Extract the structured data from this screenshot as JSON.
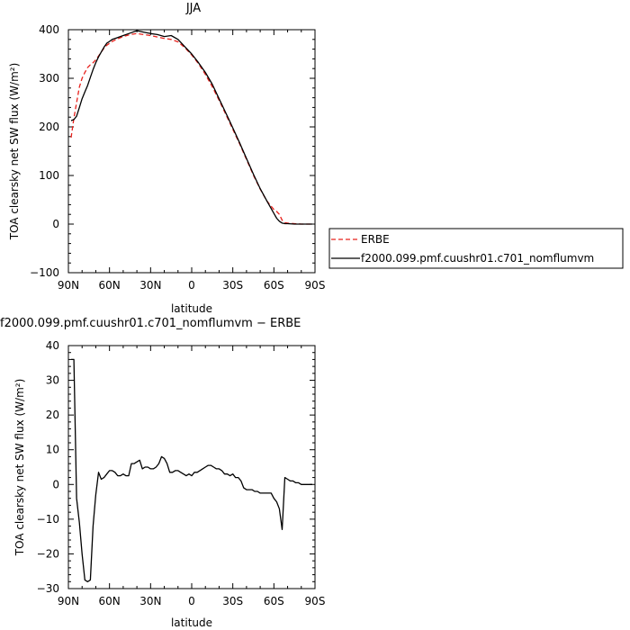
{
  "chart_data": [
    {
      "type": "line",
      "title": "JJA",
      "xlabel": "latitude",
      "ylabel": "TOA clearsky net SW flux (W/m²)",
      "ylim": [
        -100,
        400
      ],
      "xlim": [
        90,
        -90
      ],
      "xticks": [
        "90N",
        "60N",
        "30N",
        "0",
        "30S",
        "60S",
        "90S"
      ],
      "xtick_values": [
        90,
        60,
        30,
        0,
        -30,
        -60,
        -90
      ],
      "yticks": [
        "−100",
        "0",
        "100",
        "200",
        "300",
        "400"
      ],
      "ytick_values": [
        -100,
        0,
        100,
        200,
        300,
        400
      ],
      "legend_position": "right",
      "series": [
        {
          "name": "ERBE",
          "color": "#e8211c",
          "dash": "dashed",
          "x": [
            88,
            86,
            84,
            82,
            80,
            78,
            76,
            74,
            72,
            70,
            68,
            66,
            64,
            62,
            60,
            58,
            55,
            50,
            45,
            40,
            35,
            30,
            25,
            20,
            15,
            10,
            5,
            0,
            -5,
            -10,
            -15,
            -20,
            -25,
            -30,
            -35,
            -40,
            -45,
            -50,
            -55,
            -60,
            -62,
            -64,
            -66,
            -68,
            -70,
            -75,
            -80,
            -88
          ],
          "y": [
            178,
            218,
            250,
            282,
            300,
            312,
            322,
            328,
            332,
            338,
            346,
            354,
            362,
            368,
            372,
            376,
            380,
            386,
            390,
            392,
            390,
            388,
            385,
            382,
            380,
            375,
            363,
            348,
            330,
            308,
            283,
            255,
            225,
            195,
            165,
            133,
            101,
            72,
            47,
            30,
            26,
            20,
            8,
            3,
            2,
            1,
            0,
            0
          ]
        },
        {
          "name": "f2000.099.pmf.cuushr01.c701_nomflumvm",
          "color": "#000000",
          "dash": "solid",
          "x": [
            88,
            86,
            84,
            82,
            80,
            78,
            76,
            74,
            72,
            70,
            68,
            66,
            64,
            62,
            60,
            58,
            55,
            50,
            45,
            40,
            35,
            30,
            25,
            20,
            15,
            10,
            5,
            0,
            -5,
            -10,
            -15,
            -20,
            -25,
            -30,
            -35,
            -40,
            -45,
            -50,
            -55,
            -60,
            -62,
            -64,
            -66,
            -68,
            -70,
            -75,
            -80,
            -88
          ],
          "y": [
            213,
            215,
            222,
            240,
            258,
            272,
            285,
            302,
            318,
            332,
            344,
            354,
            364,
            372,
            376,
            380,
            383,
            388,
            393,
            398,
            395,
            392,
            390,
            386,
            388,
            380,
            365,
            350,
            332,
            312,
            288,
            258,
            228,
            198,
            167,
            135,
            103,
            73,
            47,
            22,
            12,
            6,
            2,
            1,
            1,
            0,
            0,
            0
          ]
        }
      ]
    },
    {
      "type": "line",
      "title": "f2000.099.pmf.cuushr01.c701_nomflumvm − ERBE",
      "xlabel": "latitude",
      "ylabel": "TOA clearsky net SW flux (W/m²)",
      "ylim": [
        -30,
        40
      ],
      "xlim": [
        90,
        -90
      ],
      "xticks": [
        "90N",
        "60N",
        "30N",
        "0",
        "30S",
        "60S",
        "90S"
      ],
      "xtick_values": [
        90,
        60,
        30,
        0,
        -30,
        -60,
        -90
      ],
      "yticks": [
        "−30",
        "−20",
        "−10",
        "0",
        "10",
        "20",
        "30",
        "40"
      ],
      "ytick_values": [
        -30,
        -20,
        -10,
        0,
        10,
        20,
        30,
        40
      ],
      "series": [
        {
          "color": "#000000",
          "dash": "solid",
          "x": [
            88,
            86,
            84,
            82,
            80,
            78,
            76,
            74,
            72,
            70,
            68,
            66,
            64,
            62,
            60,
            58,
            56,
            54,
            52,
            50,
            48,
            46,
            44,
            42,
            40,
            38,
            36,
            34,
            32,
            30,
            28,
            26,
            24,
            22,
            20,
            18,
            16,
            14,
            12,
            10,
            8,
            6,
            4,
            2,
            0,
            -2,
            -4,
            -6,
            -8,
            -10,
            -12,
            -14,
            -16,
            -18,
            -20,
            -22,
            -24,
            -26,
            -28,
            -30,
            -32,
            -34,
            -36,
            -38,
            -40,
            -42,
            -44,
            -46,
            -48,
            -50,
            -52,
            -54,
            -56,
            -58,
            -60,
            -62,
            -64,
            -66,
            -68,
            -70,
            -72,
            -74,
            -76,
            -78,
            -80,
            -82,
            -84,
            -86,
            -88
          ],
          "y": [
            36,
            36,
            -4,
            -11,
            -20,
            -27.5,
            -28,
            -27.5,
            -12,
            -3,
            3.5,
            1.5,
            2,
            3,
            4,
            4,
            3.5,
            2.5,
            2.5,
            3,
            2.5,
            2.5,
            6,
            6,
            6.5,
            7,
            4.5,
            5,
            5,
            4.5,
            4.5,
            5,
            6,
            8,
            7.5,
            6,
            3.5,
            3.5,
            4,
            4,
            3.5,
            3,
            2.5,
            3,
            2.5,
            3.5,
            3.5,
            4,
            4.5,
            5,
            5.5,
            5.5,
            5,
            4.5,
            4.5,
            4,
            3,
            3,
            2.5,
            3,
            2,
            2,
            1,
            -1,
            -1.5,
            -1.5,
            -1.5,
            -2,
            -2,
            -2.5,
            -2.5,
            -2.5,
            -2.5,
            -2.5,
            -4,
            -5,
            -7,
            -13,
            2,
            1.5,
            1,
            1,
            0.5,
            0.5,
            0,
            0,
            0,
            0,
            0
          ]
        }
      ]
    }
  ]
}
